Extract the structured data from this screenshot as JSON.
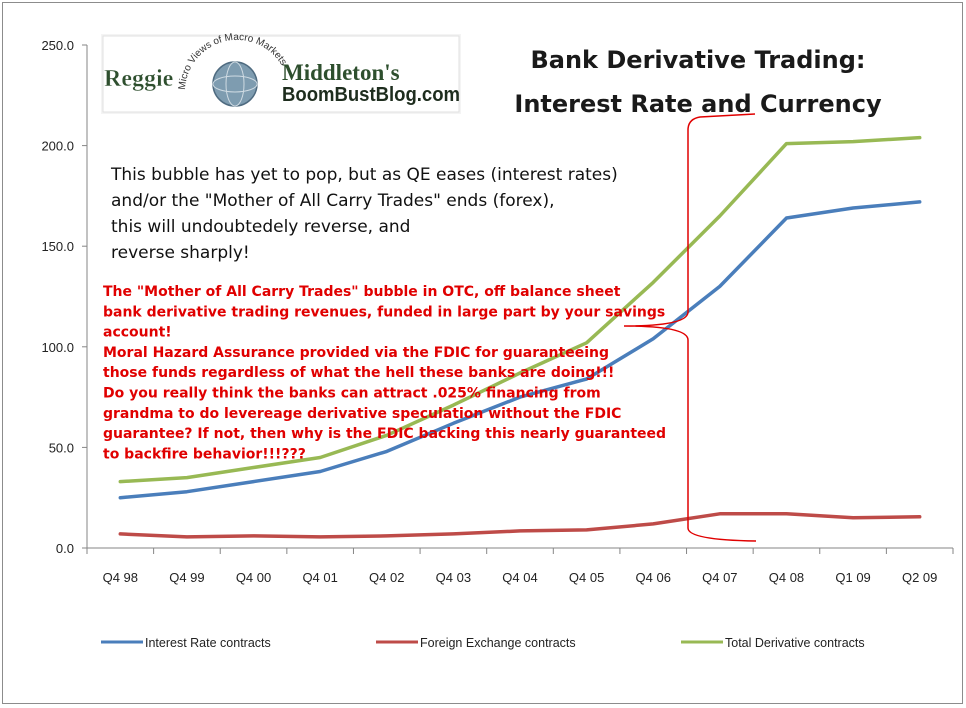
{
  "chart_data": {
    "type": "line",
    "title_lines": [
      "Bank Derivative Trading:",
      "Interest Rate and Currency"
    ],
    "categories": [
      "Q4 98",
      "Q4 99",
      "Q4 00",
      "Q4 01",
      "Q4 02",
      "Q4 03",
      "Q4 04",
      "Q4 05",
      "Q4 06",
      "Q4 07",
      "Q4 08",
      "Q1 09",
      "Q2 09"
    ],
    "y_ticks": [
      "0.0",
      "50.0",
      "100.0",
      "150.0",
      "200.0",
      "250.0"
    ],
    "ylim": [
      0,
      250
    ],
    "grid": false,
    "legend_position": "bottom",
    "series": [
      {
        "name": "Interest Rate contracts",
        "color": "#4a7ebb",
        "values": [
          25,
          28,
          33,
          38,
          48,
          62,
          75,
          84,
          104,
          130,
          164,
          169,
          172
        ]
      },
      {
        "name": "Foreign Exchange contracts",
        "color": "#be4b48",
        "values": [
          7,
          5.5,
          6,
          5.5,
          6,
          7,
          8.5,
          9,
          12,
          17,
          17,
          15,
          15.5
        ]
      },
      {
        "name": "Total Derivative contracts",
        "color": "#98b954",
        "values": [
          33,
          35,
          40,
          45,
          56,
          71,
          87,
          102,
          132,
          165,
          201,
          202,
          204
        ]
      }
    ]
  },
  "logo": {
    "name_left": "Reggie",
    "name_right": "Middleton's",
    "site": "BoomBustBlog.com",
    "tagline": "Micro Views of Macro Markets"
  },
  "annotation_black": [
    "This bubble has yet to pop, but as QE eases (interest rates)",
    "and/or the \"Mother of All Carry Trades\" ends (forex),",
    "this will undoubtedely reverse, and",
    "reverse sharply!"
  ],
  "annotation_red": [
    "The \"Mother of All Carry Trades\" bubble in OTC, off balance sheet",
    "bank derivative trading revenues, funded  in large part by your savings",
    "account!",
    "Moral Hazard Assurance provided via the FDIC for guaranteeing",
    "those funds regardless of what the hell these banks are doing!!!",
    "Do you really think the banks can attract .025% financing from",
    "grandma to do levereage derivative speculation without the FDIC",
    "guarantee? If not, then why is the FDIC backing this nearly guaranteed",
    "to backfire behavior!!!???"
  ],
  "colors": {
    "bracket": "#e00000",
    "axis": "#868686"
  }
}
